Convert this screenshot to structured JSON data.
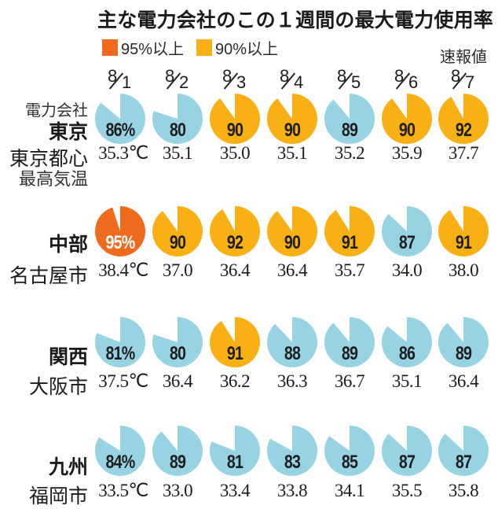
{
  "title": "主な電力会社のこの１週間の最大電力使用率",
  "legend": [
    {
      "label": "95%以上",
      "color": "#F06A1E"
    },
    {
      "label": "90%以上",
      "color": "#F8B015"
    }
  ],
  "preliminary_note": "速報値",
  "side_header": {
    "company_label": "電力会社",
    "temp_label": "最高気温"
  },
  "dates": [
    {
      "month": "8",
      "day": "1"
    },
    {
      "month": "8",
      "day": "2"
    },
    {
      "month": "8",
      "day": "3"
    },
    {
      "month": "8",
      "day": "4"
    },
    {
      "month": "8",
      "day": "5"
    },
    {
      "month": "8",
      "day": "6"
    },
    {
      "month": "8",
      "day": "7"
    }
  ],
  "colors": {
    "ge95": "#F06A1E",
    "ge90": "#F8B015",
    "normal": "#97D3E3"
  },
  "chart_data": {
    "type": "pie",
    "title": "主な電力会社のこの１週間の最大電力使用率",
    "categories": [
      "8/1",
      "8/2",
      "8/3",
      "8/4",
      "8/5",
      "8/6",
      "8/7"
    ],
    "unit": "%",
    "temp_unit": "℃",
    "note": "8/7 速報値",
    "legend": [
      "95%以上",
      "90%以上"
    ],
    "series": [
      {
        "name": "東京",
        "city": "東京都心",
        "values": [
          86,
          80,
          90,
          90,
          89,
          90,
          92
        ],
        "value_labels": [
          "86%",
          "80",
          "90",
          "90",
          "89",
          "90",
          "92"
        ],
        "temps": [
          "35.3℃",
          "35.1",
          "35.0",
          "35.1",
          "35.2",
          "35.9",
          "37.7"
        ]
      },
      {
        "name": "中部",
        "city": "名古屋市",
        "values": [
          95,
          90,
          92,
          90,
          91,
          87,
          91
        ],
        "value_labels": [
          "95%",
          "90",
          "92",
          "90",
          "91",
          "87",
          "91"
        ],
        "temps": [
          "38.4℃",
          "37.0",
          "36.4",
          "36.4",
          "35.7",
          "34.0",
          "38.0"
        ]
      },
      {
        "name": "関西",
        "city": "大阪市",
        "values": [
          81,
          80,
          91,
          88,
          89,
          86,
          89
        ],
        "value_labels": [
          "81%",
          "80",
          "91",
          "88",
          "89",
          "86",
          "89"
        ],
        "temps": [
          "37.5℃",
          "36.4",
          "36.2",
          "36.3",
          "36.7",
          "35.1",
          "36.4"
        ]
      },
      {
        "name": "九州",
        "city": "福岡市",
        "values": [
          84,
          89,
          81,
          83,
          85,
          87,
          87
        ],
        "value_labels": [
          "84%",
          "89",
          "81",
          "83",
          "85",
          "87",
          "87"
        ],
        "temps": [
          "33.5℃",
          "33.0",
          "33.4",
          "33.8",
          "34.1",
          "35.5",
          "35.8"
        ]
      }
    ]
  }
}
